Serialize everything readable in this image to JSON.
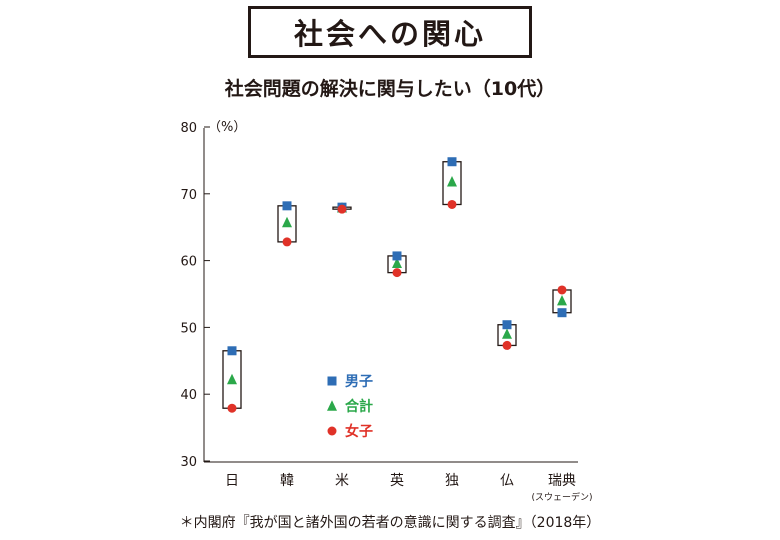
{
  "title": "社会への関心",
  "chart_data": {
    "type": "scatter",
    "title": "社会問題の解決に関与したい（10代）",
    "unit_label": "（%）",
    "ylim": [
      30,
      80
    ],
    "yticks": [
      "30",
      "40",
      "50",
      "60",
      "70",
      "80"
    ],
    "categories": [
      "日",
      "韓",
      "米",
      "英",
      "独",
      "仏",
      "瑞典"
    ],
    "category_note": "(スウェーデン)",
    "series": [
      {
        "name": "男子",
        "marker": "square",
        "color": "#2E6DB5",
        "values": [
          46.5,
          68.2,
          68.0,
          60.7,
          74.8,
          50.4,
          52.2
        ]
      },
      {
        "name": "合計",
        "marker": "triangle",
        "color": "#2BA84A",
        "values": [
          42.2,
          65.7,
          67.9,
          59.6,
          71.8,
          49.0,
          54.0
        ]
      },
      {
        "name": "女子",
        "marker": "circle",
        "color": "#E03228",
        "values": [
          37.9,
          62.8,
          67.7,
          58.2,
          68.4,
          47.3,
          55.6
        ]
      }
    ],
    "grid": false
  },
  "footnote": "＊内閣府『我が国と諸外国の若者の意識に関する調査』（2018年）"
}
